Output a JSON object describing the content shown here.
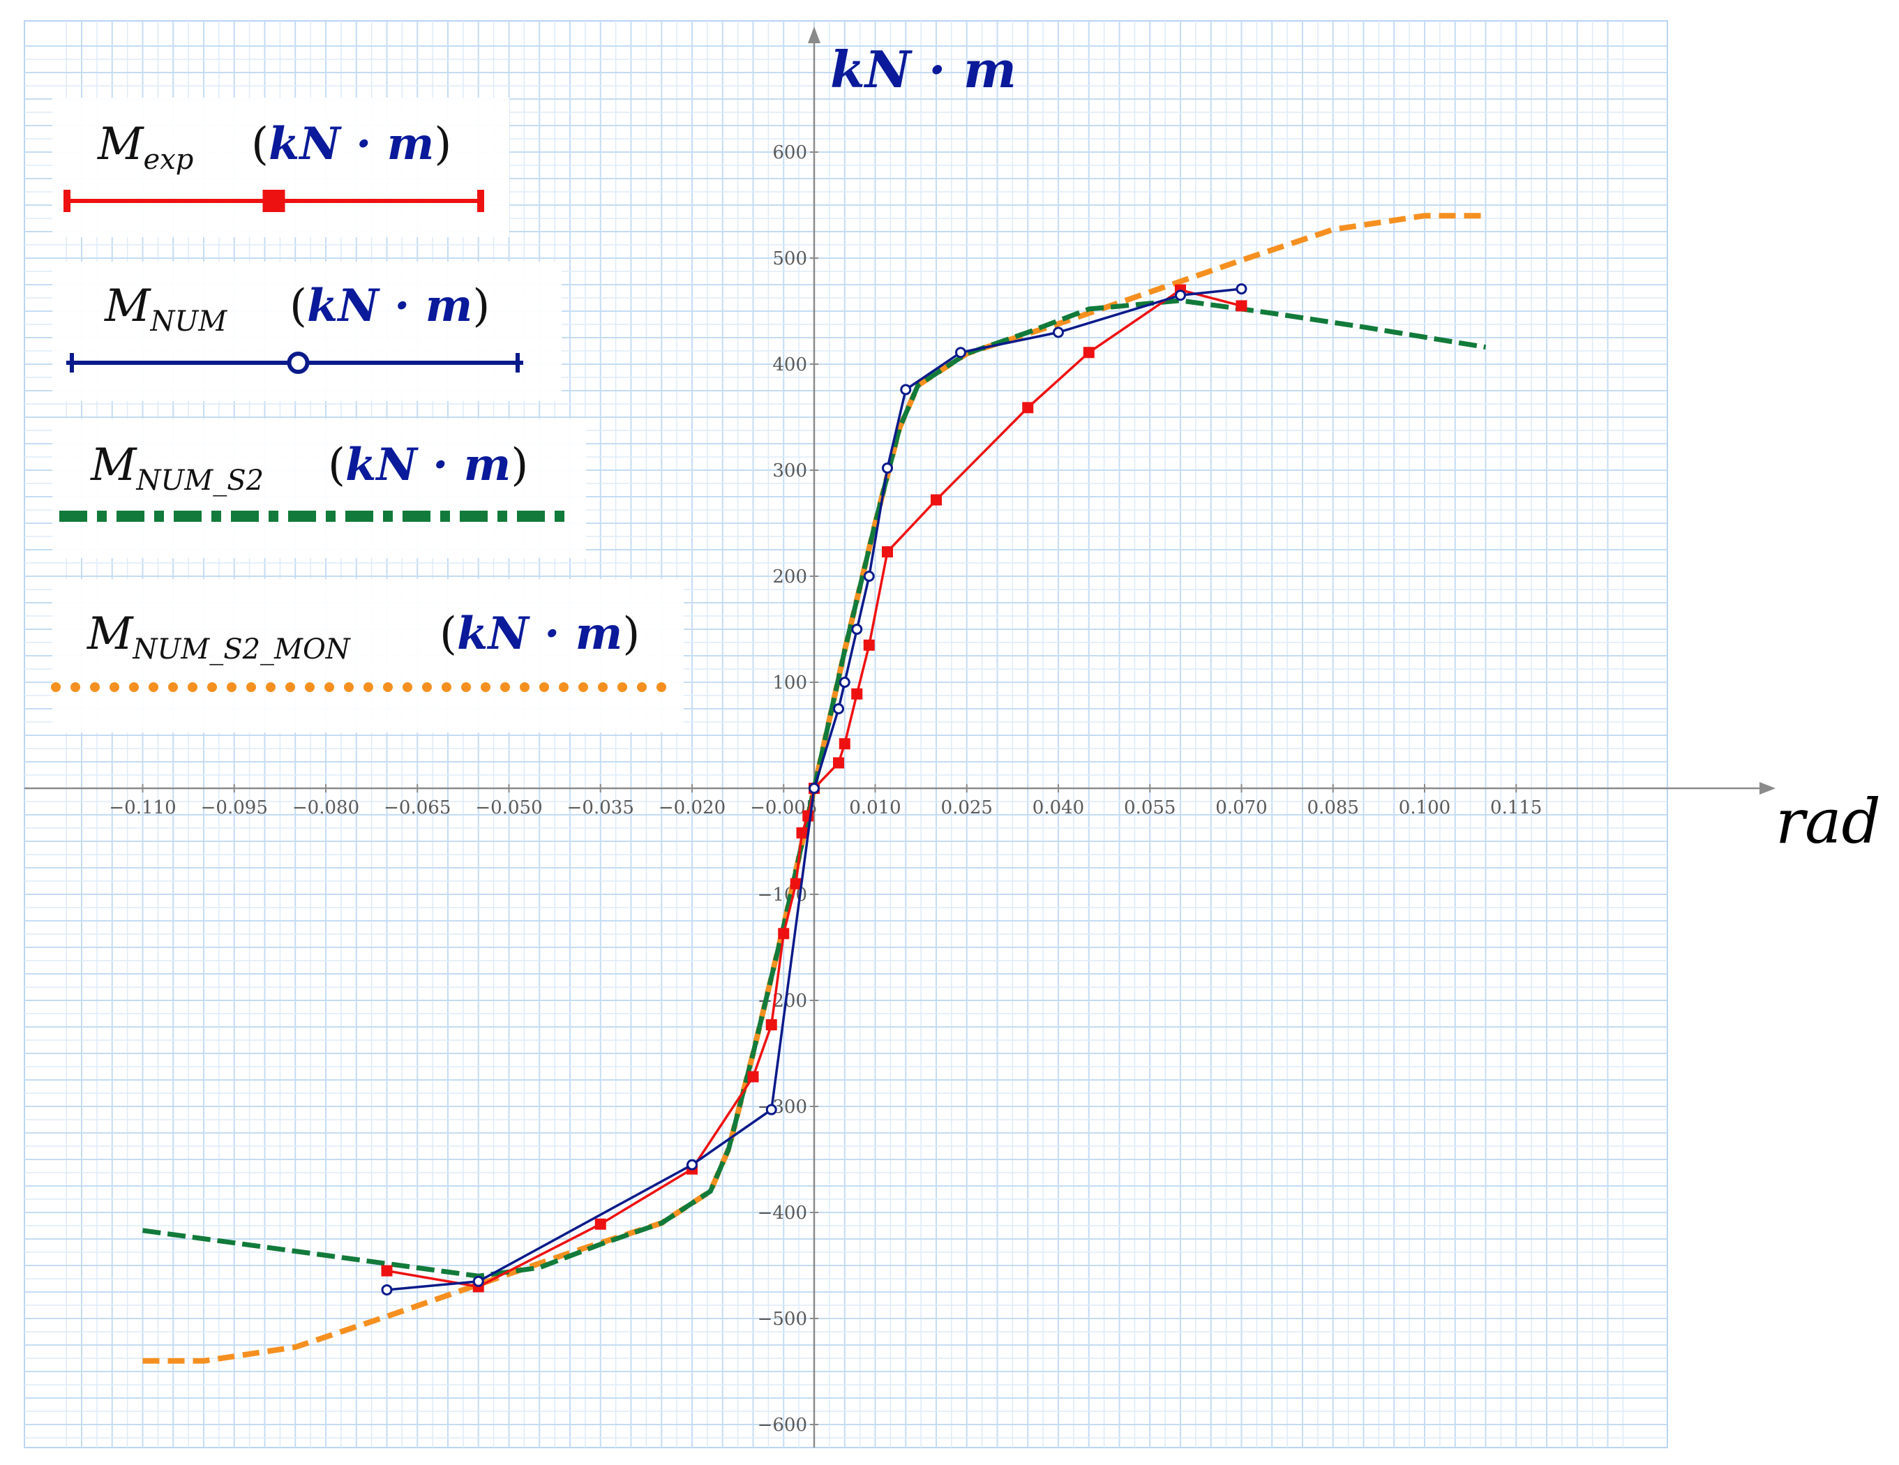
{
  "chart_data": {
    "type": "line",
    "xlabel": "rad",
    "ylabel": "kN · m",
    "xlim": [
      -0.123,
      0.133
    ],
    "ylim": [
      -630,
      710
    ],
    "grid": true,
    "legend_position": "top-left",
    "x_ticks": [
      -0.11,
      -0.095,
      -0.08,
      -0.065,
      -0.05,
      -0.035,
      -0.02,
      -0.005,
      0.01,
      0.025,
      0.04,
      0.055,
      0.07,
      0.085,
      0.1,
      0.115
    ],
    "x_tick_labels": [
      "−0.110",
      "−0.095",
      "−0.080",
      "−0.065",
      "−0.050",
      "−0.035",
      "−0.020",
      "−0.005",
      "0.010",
      "0.025",
      "0.040",
      "0.055",
      "0.070",
      "0.085",
      "0.100",
      "0.115"
    ],
    "y_ticks": [
      -600,
      -500,
      -400,
      -300,
      -200,
      -100,
      0,
      100,
      200,
      300,
      400,
      500,
      600
    ],
    "y_tick_labels": [
      "−600",
      "−500",
      "−400",
      "−300",
      "−200",
      "−100",
      "0",
      "100",
      "200",
      "300",
      "400",
      "500",
      "600"
    ],
    "series": [
      {
        "name": "M_exp",
        "legend_main": "M",
        "legend_sub": "exp",
        "legend_unit": "kN · m",
        "color": "#ee1111",
        "style": "solid-square",
        "points": [
          [
            -0.07,
            -455
          ],
          [
            -0.055,
            -470
          ],
          [
            -0.035,
            -411
          ],
          [
            -0.02,
            -359
          ],
          [
            -0.01,
            -272
          ],
          [
            -0.007,
            -223
          ],
          [
            -0.005,
            -137
          ],
          [
            -0.003,
            -90
          ],
          [
            -0.002,
            -42
          ],
          [
            -0.001,
            -26
          ],
          [
            0,
            0
          ],
          [
            0.004,
            24
          ],
          [
            0.005,
            42
          ],
          [
            0.007,
            89
          ],
          [
            0.009,
            135
          ],
          [
            0.012,
            223
          ],
          [
            0.02,
            272
          ],
          [
            0.035,
            359
          ],
          [
            0.045,
            411
          ],
          [
            0.06,
            470
          ],
          [
            0.07,
            455
          ]
        ]
      },
      {
        "name": "M_NUM",
        "legend_main": "M",
        "legend_sub": "NUM",
        "legend_unit": "kN · m",
        "color": "#0a1a8a",
        "style": "solid-circle",
        "points": [
          [
            -0.07,
            -473
          ],
          [
            -0.055,
            -465
          ],
          [
            -0.02,
            -355
          ],
          [
            -0.007,
            -303
          ],
          [
            0,
            0
          ],
          [
            0.004,
            75
          ],
          [
            0.005,
            100
          ],
          [
            0.007,
            150
          ],
          [
            0.009,
            200
          ],
          [
            0.012,
            302
          ],
          [
            0.015,
            376
          ],
          [
            0.024,
            411
          ],
          [
            0.04,
            430
          ],
          [
            0.06,
            465
          ],
          [
            0.07,
            471
          ]
        ]
      },
      {
        "name": "M_NUM_S2",
        "legend_main": "M",
        "legend_sub": "NUM_S2",
        "legend_unit": "kN · m",
        "color": "#127a3a",
        "style": "dash-dot",
        "points": [
          [
            -0.11,
            -417
          ],
          [
            -0.055,
            -460
          ],
          [
            -0.045,
            -452
          ],
          [
            -0.035,
            -430
          ],
          [
            -0.025,
            -410
          ],
          [
            -0.017,
            -380
          ],
          [
            -0.014,
            -340
          ],
          [
            -0.01,
            -250
          ],
          [
            -0.005,
            -130
          ],
          [
            0,
            0
          ],
          [
            0.005,
            130
          ],
          [
            0.01,
            250
          ],
          [
            0.014,
            340
          ],
          [
            0.017,
            380
          ],
          [
            0.025,
            410
          ],
          [
            0.035,
            430
          ],
          [
            0.045,
            452
          ],
          [
            0.06,
            460
          ],
          [
            0.075,
            448
          ],
          [
            0.09,
            435
          ],
          [
            0.11,
            416
          ]
        ]
      },
      {
        "name": "M_NUM_S2_MON",
        "legend_main": "M",
        "legend_sub": "NUM_S2_MON",
        "legend_unit": "kN · m",
        "color": "#f59020",
        "style": "dotted",
        "points": [
          [
            -0.11,
            -540
          ],
          [
            -0.1,
            -540
          ],
          [
            -0.085,
            -527
          ],
          [
            -0.07,
            -498
          ],
          [
            -0.055,
            -468
          ],
          [
            -0.04,
            -438
          ],
          [
            -0.025,
            -410
          ],
          [
            -0.017,
            -380
          ],
          [
            -0.014,
            -340
          ],
          [
            -0.01,
            -250
          ],
          [
            -0.005,
            -130
          ],
          [
            0,
            0
          ],
          [
            0.005,
            130
          ],
          [
            0.01,
            250
          ],
          [
            0.014,
            340
          ],
          [
            0.017,
            380
          ],
          [
            0.025,
            410
          ],
          [
            0.04,
            438
          ],
          [
            0.055,
            468
          ],
          [
            0.07,
            498
          ],
          [
            0.085,
            527
          ],
          [
            0.1,
            540
          ],
          [
            0.11,
            540
          ]
        ]
      }
    ]
  }
}
